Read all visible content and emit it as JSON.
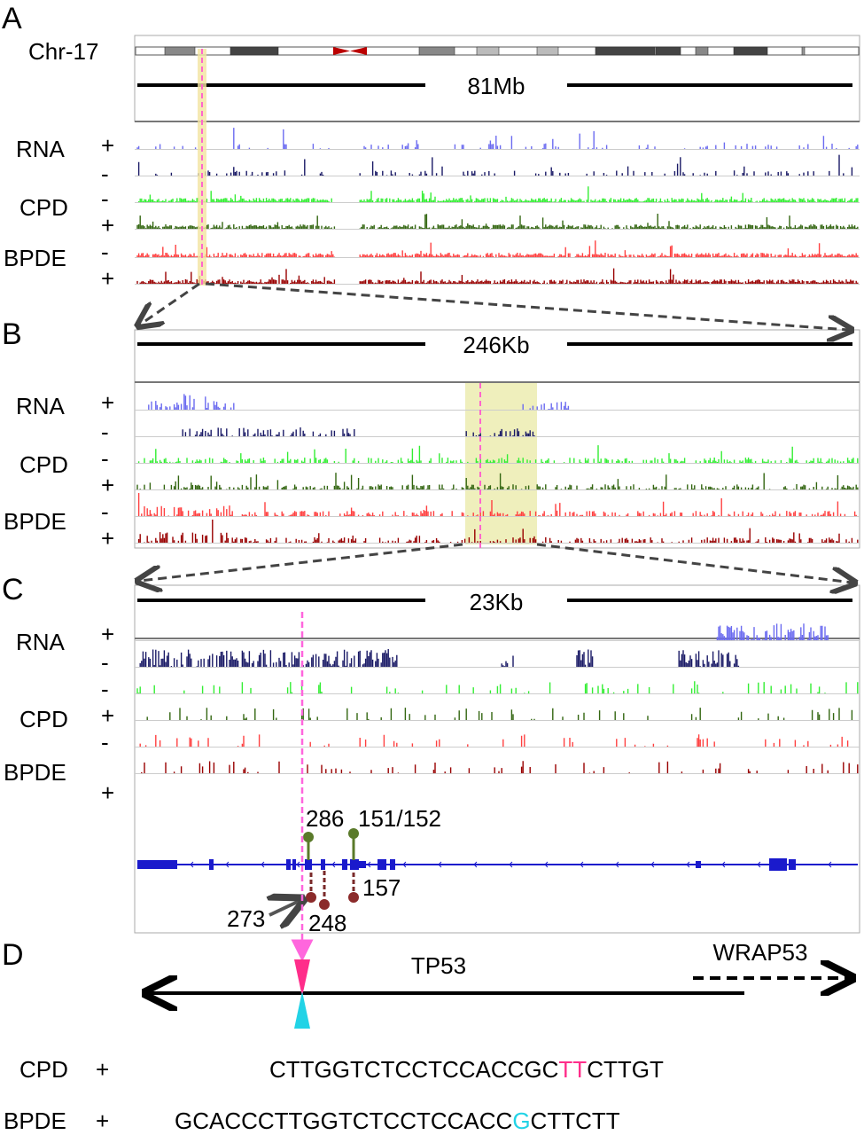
{
  "panels": {
    "a": "A",
    "b": "B",
    "c": "C",
    "d": "D"
  },
  "chromosome": "Chr-17",
  "scales": {
    "a": "81Mb",
    "b": "246Kb",
    "c": "23Kb"
  },
  "track_labels": {
    "rna": "RNA",
    "cpd": "CPD",
    "bpde": "BPDE"
  },
  "strands": {
    "plus": "+",
    "minus": "-"
  },
  "track_colors": {
    "rna_plus": "#6b6bf0",
    "rna_minus": "#1a1a66",
    "cpd_minus": "#33ee33",
    "cpd_plus": "#336611",
    "bpde_minus": "#ff4040",
    "bpde_plus": "#990000"
  },
  "mutations": {
    "top": [
      "286",
      "151/152"
    ],
    "bottom": [
      "273",
      "248",
      "157"
    ]
  },
  "genes": {
    "tp53": "TP53",
    "wrap53": "WRAP53"
  },
  "sequences": {
    "cpd": {
      "label": "CPD",
      "strand": "+",
      "prefix": "CTTGGTCTCCTCCACCGC",
      "highlight": "TT",
      "suffix": "CTTGT",
      "highlight_color": "#ff2d8a"
    },
    "bpde": {
      "label": "BPDE",
      "strand": "+",
      "prefix": "GCACCCTTGGTCTCCTCCACC",
      "highlight": "G",
      "suffix": "CTTCTT",
      "highlight_color": "#22d3e6"
    }
  }
}
